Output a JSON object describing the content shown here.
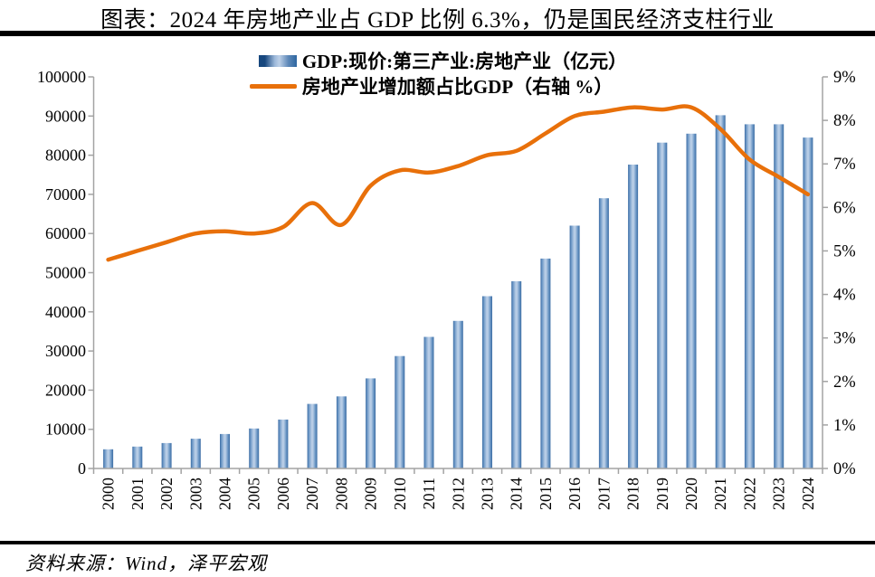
{
  "title": "图表：2024 年房地产业占 GDP 比例 6.3%，仍是国民经济支柱行业",
  "source": "资料来源：Wind，泽平宏观",
  "legend": {
    "items": [
      {
        "label": "GDP:现价:第三产业:房地产业（亿元）",
        "swatch": "bar"
      },
      {
        "label": "房地产业增加额占比GDP（右轴 %）",
        "swatch": "line"
      }
    ]
  },
  "colors": {
    "bar_edge": "#3a6ba3",
    "bar_mid": "#6d98c6",
    "bar_highlight": "#b8cde6",
    "line": "#e8700a",
    "axis": "#a3a3a3",
    "text": "#000000",
    "rule": "#000000",
    "background": "#ffffff"
  },
  "chart_data": {
    "type": "combo",
    "categories": [
      "2000",
      "2001",
      "2002",
      "2003",
      "2004",
      "2005",
      "2006",
      "2007",
      "2008",
      "2009",
      "2010",
      "2011",
      "2012",
      "2013",
      "2014",
      "2015",
      "2016",
      "2017",
      "2018",
      "2019",
      "2020",
      "2021",
      "2022",
      "2023",
      "2024"
    ],
    "series": [
      {
        "name": "GDP:现价:第三产业:房地产业（亿元）",
        "type": "bar",
        "axis": "left",
        "values": [
          4900,
          5600,
          6500,
          7600,
          8800,
          10200,
          12500,
          16500,
          18400,
          23000,
          28700,
          33600,
          37700,
          44000,
          47800,
          53600,
          62000,
          69000,
          77600,
          83200,
          85500,
          90200,
          87900,
          87900,
          84500
        ]
      },
      {
        "name": "房地产业增加额占比GDP（右轴 %）",
        "type": "line",
        "axis": "right",
        "values": [
          4.8,
          5.0,
          5.2,
          5.4,
          5.45,
          5.4,
          5.55,
          6.1,
          5.6,
          6.5,
          6.85,
          6.8,
          6.95,
          7.2,
          7.3,
          7.7,
          8.1,
          8.2,
          8.3,
          8.25,
          8.3,
          7.8,
          7.1,
          6.7,
          6.3
        ]
      }
    ],
    "left_axis": {
      "min": 0,
      "max": 100000,
      "step": 10000,
      "ticks": [
        "0",
        "10000",
        "20000",
        "30000",
        "40000",
        "50000",
        "60000",
        "70000",
        "80000",
        "90000",
        "100000"
      ]
    },
    "right_axis": {
      "min": 0,
      "max": 9,
      "step": 1,
      "suffix": "%",
      "ticks": [
        "0%",
        "1%",
        "2%",
        "3%",
        "4%",
        "5%",
        "6%",
        "7%",
        "8%",
        "9%"
      ]
    },
    "grid": false,
    "legend_position": "top-center",
    "x_label_rotation": -90
  }
}
